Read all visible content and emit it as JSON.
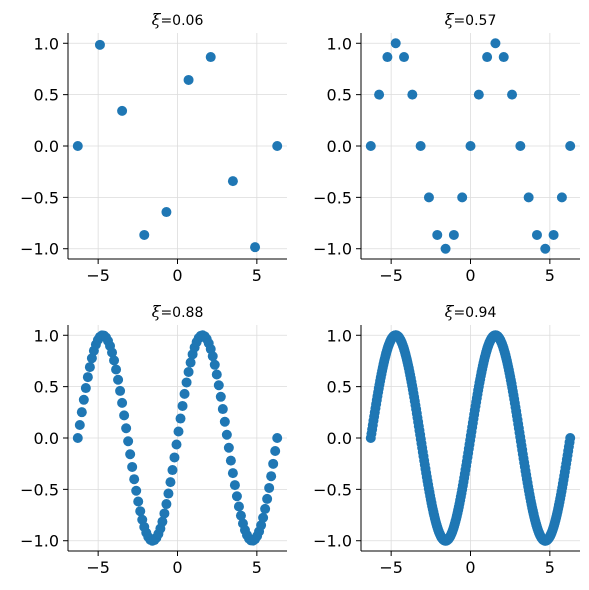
{
  "chart_data": [
    {
      "type": "scatter",
      "title_symbol": "ξ",
      "title_value": "=0.06",
      "n": 10,
      "xlim": [
        -6.9,
        6.9
      ],
      "ylim": [
        -1.1,
        1.1
      ],
      "xticks": [
        "-5",
        "0",
        "5"
      ],
      "xtick_values": [
        -5,
        0,
        5
      ],
      "yticks": [
        "1.0",
        "0.5",
        "0.0",
        "-0.5",
        "-1.0"
      ],
      "ytick_values": [
        1.0,
        0.5,
        0.0,
        -0.5,
        -1.0
      ],
      "grid": true,
      "color": "#1f77b4",
      "x": [
        -6.283,
        -4.887,
        -3.491,
        -2.094,
        -0.698,
        0.698,
        2.094,
        3.491,
        4.887,
        6.283
      ],
      "y": [
        0.0,
        0.985,
        0.342,
        -0.866,
        -0.643,
        0.643,
        0.866,
        -0.342,
        -0.985,
        0.0
      ]
    },
    {
      "type": "scatter",
      "title_symbol": "ξ",
      "title_value": "=0.57",
      "n": 25,
      "xlim": [
        -6.9,
        6.9
      ],
      "ylim": [
        -1.1,
        1.1
      ],
      "xticks": [
        "-5",
        "0",
        "5"
      ],
      "xtick_values": [
        -5,
        0,
        5
      ],
      "yticks": [
        "1.0",
        "0.5",
        "0.0",
        "-0.5",
        "-1.0"
      ],
      "ytick_values": [
        1.0,
        0.5,
        0.0,
        -0.5,
        -1.0
      ],
      "grid": true,
      "color": "#1f77b4",
      "x": [
        -6.283,
        -5.76,
        -5.236,
        -4.712,
        -4.189,
        -3.665,
        -3.142,
        -2.618,
        -2.094,
        -1.571,
        -1.047,
        -0.524,
        0.0,
        0.524,
        1.047,
        1.571,
        2.094,
        2.618,
        3.142,
        3.665,
        4.189,
        4.712,
        5.236,
        5.76,
        6.283
      ],
      "y": [
        0.0,
        0.5,
        0.866,
        1.0,
        0.866,
        0.5,
        0.0,
        -0.5,
        -0.866,
        -1.0,
        -0.866,
        -0.5,
        0.0,
        0.5,
        0.866,
        1.0,
        0.866,
        0.5,
        0.0,
        -0.5,
        -0.866,
        -1.0,
        -0.866,
        -0.5,
        0.0
      ]
    },
    {
      "type": "scatter",
      "title_symbol": "ξ",
      "title_value": "=0.88",
      "n": 100,
      "function": "sin",
      "x_range": [
        -6.283,
        6.283
      ],
      "xlim": [
        -6.9,
        6.9
      ],
      "ylim": [
        -1.1,
        1.1
      ],
      "xticks": [
        "-5",
        "0",
        "5"
      ],
      "xtick_values": [
        -5,
        0,
        5
      ],
      "yticks": [
        "1.0",
        "0.5",
        "0.0",
        "-0.5",
        "-1.0"
      ],
      "ytick_values": [
        1.0,
        0.5,
        0.0,
        -0.5,
        -1.0
      ],
      "grid": true,
      "color": "#1f77b4"
    },
    {
      "type": "scatter",
      "title_symbol": "ξ",
      "title_value": "=0.94",
      "n": 300,
      "function": "sin",
      "x_range": [
        -6.283,
        6.283
      ],
      "xlim": [
        -6.9,
        6.9
      ],
      "ylim": [
        -1.1,
        1.1
      ],
      "xticks": [
        "-5",
        "0",
        "5"
      ],
      "xtick_values": [
        -5,
        0,
        5
      ],
      "yticks": [
        "1.0",
        "0.5",
        "0.0",
        "-0.5",
        "-1.0"
      ],
      "ytick_values": [
        1.0,
        0.5,
        0.0,
        -0.5,
        -1.0
      ],
      "grid": true,
      "color": "#1f77b4"
    }
  ]
}
